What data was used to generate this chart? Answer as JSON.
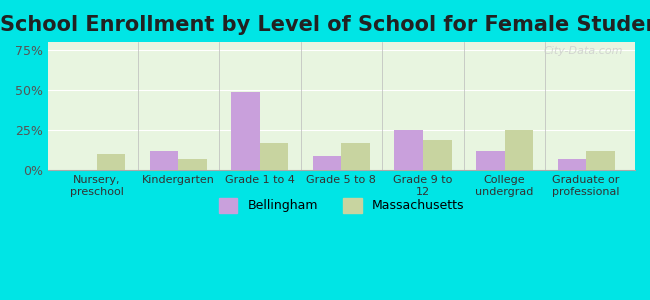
{
  "title": "School Enrollment by Level of School for Female Students",
  "categories": [
    "Nursery,\npreschool",
    "Kindergarten",
    "Grade 1 to 4",
    "Grade 5 to 8",
    "Grade 9 to\n12",
    "College\nundergrad",
    "Graduate or\nprofessional"
  ],
  "bellingham": [
    0,
    12,
    49,
    9,
    25,
    12,
    7
  ],
  "massachusetts": [
    10,
    7,
    17,
    17,
    19,
    25,
    12
  ],
  "bellingham_color": "#c9a0dc",
  "massachusetts_color": "#c8d4a0",
  "background_color": "#00e5e5",
  "plot_bg_gradient_top": "#e8f5e8",
  "plot_bg_gradient_bottom": "#f5ffe5",
  "ylim": [
    0,
    80
  ],
  "yticks": [
    0,
    25,
    50,
    75
  ],
  "ytick_labels": [
    "0%",
    "25%",
    "50%",
    "75%"
  ],
  "title_fontsize": 15,
  "legend_labels": [
    "Bellingham",
    "Massachusetts"
  ],
  "bar_width": 0.35
}
